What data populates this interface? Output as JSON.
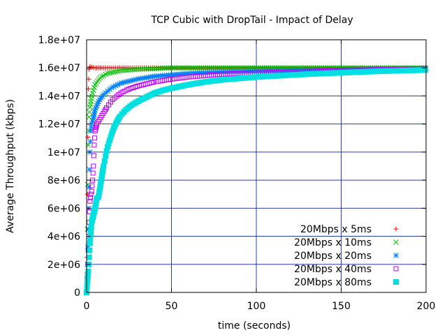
{
  "chart_data": {
    "type": "scatter",
    "title": "TCP Cubic with DropTail - Impact of Delay",
    "xlabel": "time (seconds)",
    "ylabel": "Average Throughput (kbps)",
    "xlim": [
      0,
      200
    ],
    "ylim": [
      0,
      18000000
    ],
    "xticks": [
      0,
      50,
      100,
      150,
      200
    ],
    "xtick_labels": [
      "0",
      "50",
      "100",
      "150",
      "200"
    ],
    "yticks": [
      0,
      2000000,
      4000000,
      6000000,
      8000000,
      10000000,
      12000000,
      14000000,
      16000000,
      18000000
    ],
    "ytick_labels": [
      "0",
      "2e+06",
      "4e+06",
      "6e+06",
      "8e+06",
      "1e+07",
      "1.2e+07",
      "1.4e+07",
      "1.6e+07",
      "1.8e+07"
    ],
    "grid": true,
    "legend_position": "bottom-right",
    "series": [
      {
        "name": "20Mbps x 5ms",
        "color": "#ff0000",
        "marker": "plus",
        "x": [
          0,
          0.3,
          0.6,
          1,
          1.5,
          2,
          3,
          5,
          8,
          15,
          30,
          60,
          100,
          150,
          200
        ],
        "y": [
          0,
          3000000,
          9000000,
          14500000,
          15900000,
          16100000,
          16050000,
          16000000,
          16000000,
          16000000,
          16000000,
          16000000,
          16000000,
          16000000,
          16000000
        ]
      },
      {
        "name": "20Mbps x 10ms",
        "color": "#00c000",
        "marker": "cross",
        "x": [
          0,
          0.3,
          0.6,
          1,
          1.5,
          2,
          3,
          5,
          8,
          12,
          20,
          30,
          50,
          80,
          120,
          160,
          200
        ],
        "y": [
          0,
          1500000,
          6000000,
          10500000,
          12500000,
          13200000,
          14000000,
          14800000,
          15300000,
          15600000,
          15800000,
          15900000,
          16000000,
          16000000,
          16000000,
          16000000,
          16000000
        ]
      },
      {
        "name": "20Mbps x 20ms",
        "color": "#0080ff",
        "marker": "star",
        "x": [
          0,
          0.5,
          1,
          1.5,
          2,
          2.5,
          3,
          4,
          5,
          7,
          10,
          15,
          20,
          30,
          40,
          60,
          80,
          100,
          130,
          160,
          200
        ],
        "y": [
          0,
          2000000,
          4500000,
          7500000,
          10000000,
          11500000,
          12000000,
          12400000,
          13000000,
          13600000,
          14100000,
          14600000,
          14900000,
          15200000,
          15400000,
          15600000,
          15700000,
          15750000,
          15800000,
          15850000,
          15900000
        ]
      },
      {
        "name": "20Mbps x 40ms",
        "color": "#c000ff",
        "marker": "square",
        "x": [
          0,
          0.5,
          1,
          1.5,
          2,
          2.5,
          3,
          3.5,
          4,
          4.5,
          5,
          6,
          7,
          8,
          10,
          12,
          15,
          20,
          25,
          30,
          40,
          50,
          60,
          80,
          100,
          130,
          160,
          200
        ],
        "y": [
          0,
          1000000,
          3000000,
          5000000,
          6500000,
          7000000,
          7200000,
          8000000,
          9000000,
          10500000,
          11500000,
          12000000,
          12200000,
          12400000,
          12800000,
          13200000,
          13700000,
          14200000,
          14500000,
          14700000,
          15000000,
          15200000,
          15350000,
          15550000,
          15650000,
          15750000,
          15850000,
          15950000
        ]
      },
      {
        "name": "20Mbps x 80ms",
        "color": "#00e0e0",
        "marker": "filled-square",
        "x": [
          0,
          1,
          2,
          3,
          4,
          5,
          6,
          7,
          8,
          9,
          10,
          11,
          12,
          14,
          16,
          18,
          20,
          23,
          26,
          30,
          35,
          40,
          45,
          50,
          60,
          70,
          80,
          90,
          100,
          115,
          130,
          150,
          170,
          185,
          200
        ],
        "y": [
          0,
          1500000,
          3500000,
          5000000,
          5500000,
          6000000,
          6700000,
          6800000,
          7500000,
          8300000,
          9000000,
          9600000,
          10200000,
          11000000,
          11700000,
          12200000,
          12600000,
          13000000,
          13300000,
          13600000,
          13900000,
          14200000,
          14400000,
          14550000,
          14800000,
          15000000,
          15150000,
          15250000,
          15350000,
          15450000,
          15550000,
          15650000,
          15750000,
          15800000,
          15850000
        ]
      }
    ]
  }
}
